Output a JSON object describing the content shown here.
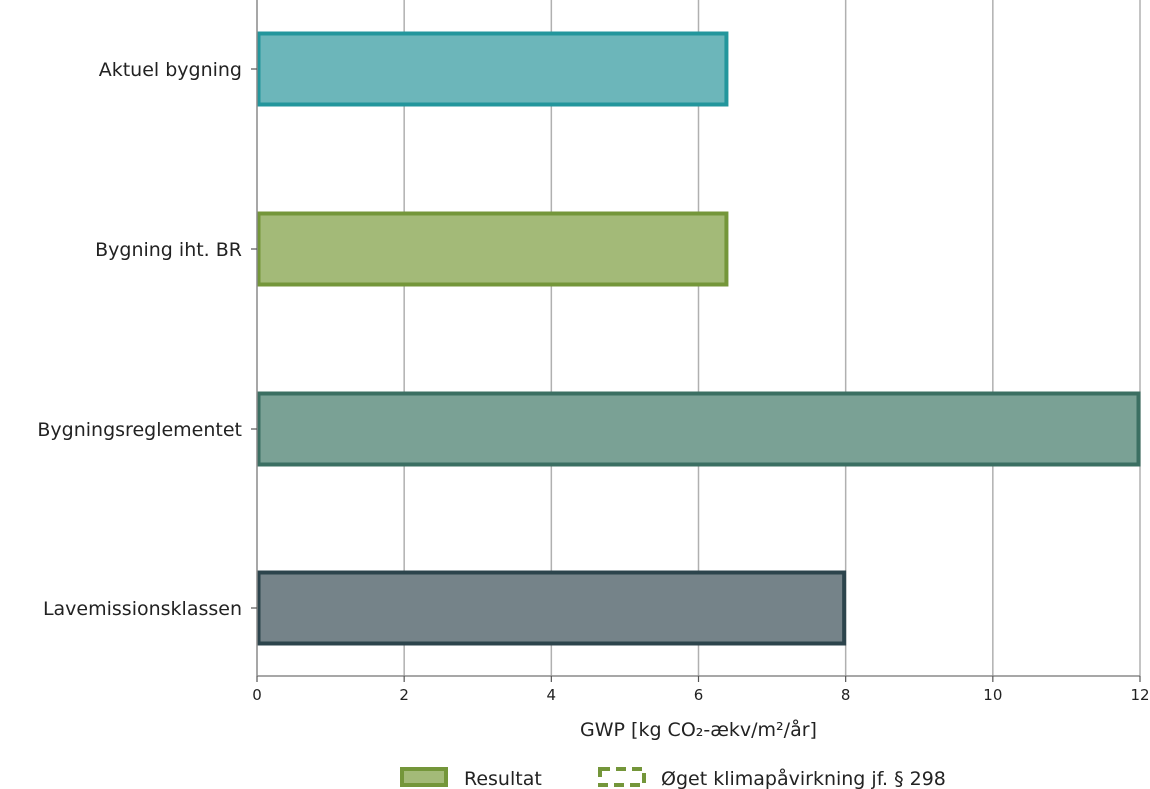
{
  "chart_data": {
    "type": "bar",
    "orientation": "horizontal",
    "categories": [
      "Aktuel bygning",
      "Bygning iht. BR",
      "Bygningsreglementet",
      "Lavemissionsklassen"
    ],
    "values": [
      6.4,
      6.4,
      12,
      8
    ],
    "bar_colors": [
      {
        "fill": "#6cb6ba",
        "stroke": "#23969c"
      },
      {
        "fill": "#a3ba78",
        "stroke": "#74963a"
      },
      {
        "fill": "#7aa195",
        "stroke": "#3b6f62"
      },
      {
        "fill": "#758389",
        "stroke": "#2c444c"
      }
    ],
    "xlabel": "GWP [kg CO₂-ækv/m²/år]",
    "xlim": [
      0,
      12
    ],
    "xticks": [
      0,
      2,
      4,
      6,
      8,
      10,
      12
    ],
    "grid": "vertical",
    "legend_position": "bottom",
    "legend": [
      {
        "label": "Resultat",
        "style": "solid",
        "fill": "#a3ba78",
        "stroke": "#74963a"
      },
      {
        "label": "Øget klimapåvirkning jf. § 298",
        "style": "dashed",
        "fill": "none",
        "stroke": "#74963a"
      }
    ]
  }
}
